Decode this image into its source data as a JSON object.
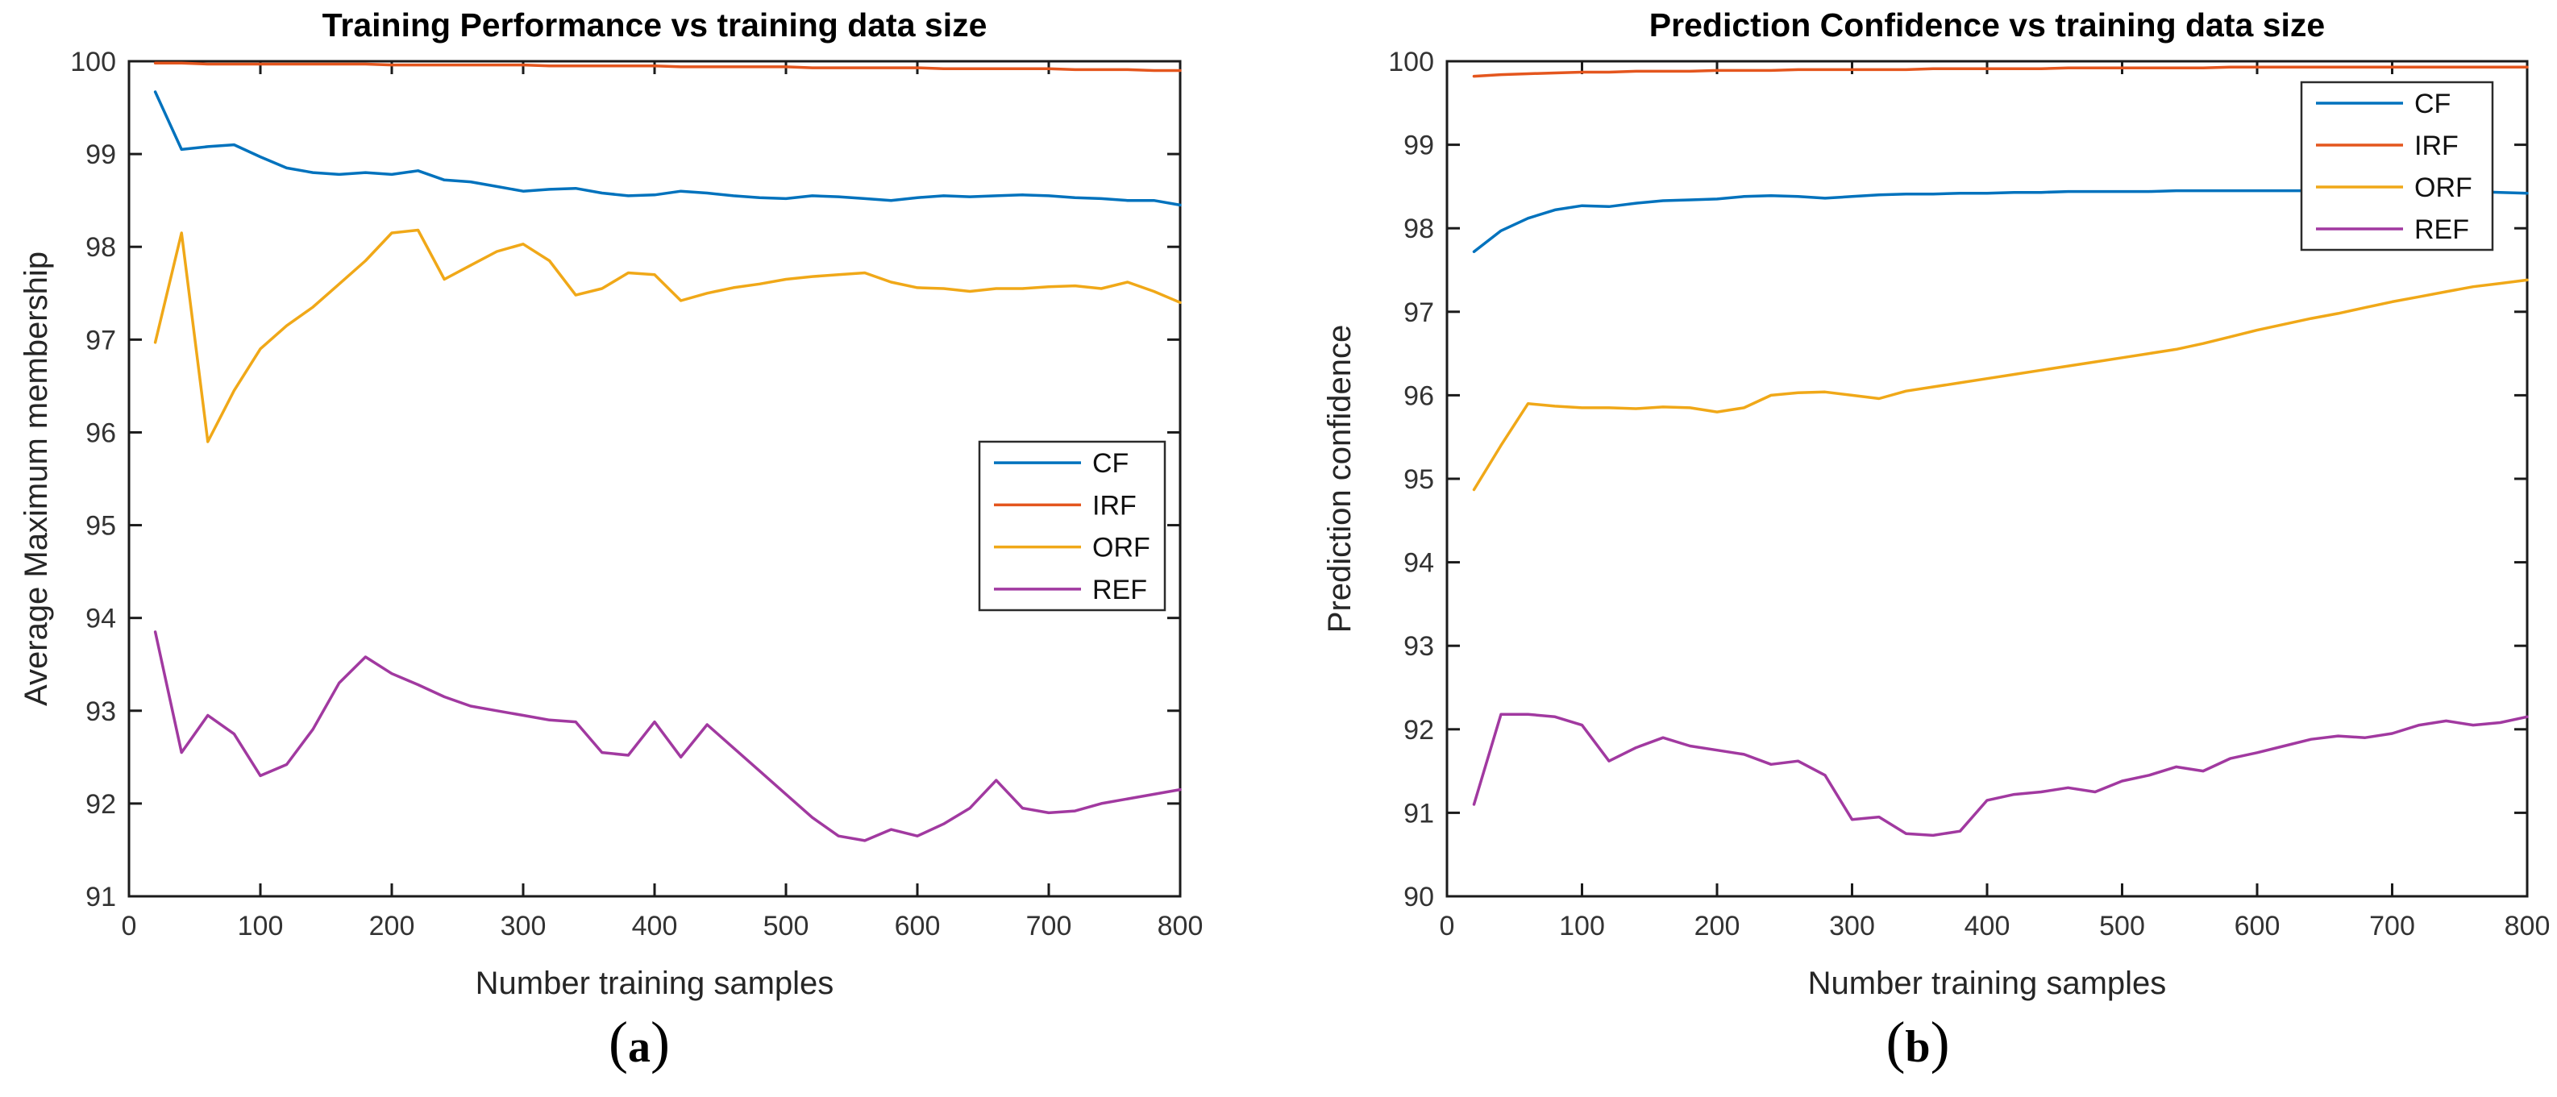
{
  "chart_data": [
    {
      "type": "line",
      "panel": "a",
      "title": "Training Performance vs training data size",
      "xlabel": "Number training samples",
      "ylabel": "Average Maximum membership",
      "caption": {
        "open": "(",
        "letter": "a",
        "close": ")"
      },
      "xlim": [
        0,
        800
      ],
      "ylim": [
        91,
        100
      ],
      "x_ticks": [
        0,
        100,
        200,
        300,
        400,
        500,
        600,
        700,
        800
      ],
      "y_ticks": [
        91,
        92,
        93,
        94,
        95,
        96,
        97,
        98,
        99,
        100
      ],
      "grid": false,
      "legend_position": "middle-right",
      "x": [
        20,
        40,
        60,
        80,
        100,
        120,
        140,
        160,
        180,
        200,
        220,
        240,
        260,
        280,
        300,
        320,
        340,
        360,
        380,
        400,
        420,
        440,
        460,
        480,
        500,
        520,
        540,
        560,
        580,
        600,
        620,
        640,
        660,
        680,
        700,
        720,
        740,
        760,
        780,
        800
      ],
      "series": [
        {
          "name": "CF",
          "color": "#0072BD",
          "values": [
            99.67,
            99.05,
            99.08,
            99.1,
            98.97,
            98.85,
            98.8,
            98.78,
            98.8,
            98.78,
            98.82,
            98.72,
            98.7,
            98.65,
            98.6,
            98.62,
            98.63,
            98.58,
            98.55,
            98.56,
            98.6,
            98.58,
            98.55,
            98.53,
            98.52,
            98.55,
            98.54,
            98.52,
            98.5,
            98.53,
            98.55,
            98.54,
            98.55,
            98.56,
            98.55,
            98.53,
            98.52,
            98.5,
            98.5,
            98.45
          ]
        },
        {
          "name": "IRF",
          "color": "#E4561E",
          "values": [
            99.98,
            99.98,
            99.97,
            99.97,
            99.97,
            99.97,
            99.97,
            99.97,
            99.97,
            99.96,
            99.96,
            99.96,
            99.96,
            99.96,
            99.96,
            99.95,
            99.95,
            99.95,
            99.95,
            99.95,
            99.94,
            99.94,
            99.94,
            99.94,
            99.94,
            99.93,
            99.93,
            99.93,
            99.93,
            99.93,
            99.92,
            99.92,
            99.92,
            99.92,
            99.92,
            99.91,
            99.91,
            99.91,
            99.9,
            99.9
          ]
        },
        {
          "name": "ORF",
          "color": "#F0A818",
          "values": [
            96.97,
            98.15,
            95.9,
            96.45,
            96.9,
            97.15,
            97.35,
            97.6,
            97.85,
            98.15,
            98.18,
            97.65,
            97.8,
            97.95,
            98.03,
            97.85,
            97.48,
            97.55,
            97.72,
            97.7,
            97.42,
            97.5,
            97.56,
            97.6,
            97.65,
            97.68,
            97.7,
            97.72,
            97.62,
            97.56,
            97.55,
            97.52,
            97.55,
            97.55,
            97.57,
            97.58,
            97.55,
            97.62,
            97.52,
            97.4
          ]
        },
        {
          "name": "REF",
          "color": "#A139A0",
          "values": [
            93.85,
            92.55,
            92.95,
            92.75,
            92.3,
            92.42,
            92.8,
            93.3,
            93.58,
            93.4,
            93.28,
            93.15,
            93.05,
            93.0,
            92.95,
            92.9,
            92.88,
            92.55,
            92.52,
            92.88,
            92.5,
            92.85,
            92.6,
            92.35,
            92.1,
            91.85,
            91.65,
            91.6,
            91.72,
            91.65,
            91.78,
            91.95,
            92.25,
            91.95,
            91.9,
            91.92,
            92.0,
            92.05,
            92.1,
            92.15
          ]
        }
      ]
    },
    {
      "type": "line",
      "panel": "b",
      "title": "Prediction Confidence vs training data size",
      "xlabel": "Number training samples",
      "ylabel": "Prediction confidence",
      "caption": {
        "open": "(",
        "letter": "b",
        "close": ")"
      },
      "xlim": [
        0,
        800
      ],
      "ylim": [
        90,
        100
      ],
      "x_ticks": [
        0,
        100,
        200,
        300,
        400,
        500,
        600,
        700,
        800
      ],
      "y_ticks": [
        90,
        91,
        92,
        93,
        94,
        95,
        96,
        97,
        98,
        99,
        100
      ],
      "grid": false,
      "legend_position": "top-right",
      "x": [
        20,
        40,
        60,
        80,
        100,
        120,
        140,
        160,
        180,
        200,
        220,
        240,
        260,
        280,
        300,
        320,
        340,
        360,
        380,
        400,
        420,
        440,
        460,
        480,
        500,
        520,
        540,
        560,
        580,
        600,
        620,
        640,
        660,
        680,
        700,
        720,
        740,
        760,
        780,
        800
      ],
      "series": [
        {
          "name": "CF",
          "color": "#0072BD",
          "values": [
            97.72,
            97.97,
            98.12,
            98.22,
            98.27,
            98.26,
            98.3,
            98.33,
            98.34,
            98.35,
            98.38,
            98.39,
            98.38,
            98.36,
            98.38,
            98.4,
            98.41,
            98.41,
            98.42,
            98.42,
            98.43,
            98.43,
            98.44,
            98.44,
            98.44,
            98.44,
            98.45,
            98.45,
            98.45,
            98.45,
            98.45,
            98.45,
            98.45,
            98.44,
            98.44,
            98.44,
            98.44,
            98.44,
            98.43,
            98.42
          ]
        },
        {
          "name": "IRF",
          "color": "#E4561E",
          "values": [
            99.82,
            99.84,
            99.85,
            99.86,
            99.87,
            99.87,
            99.88,
            99.88,
            99.88,
            99.89,
            99.89,
            99.89,
            99.9,
            99.9,
            99.9,
            99.9,
            99.9,
            99.91,
            99.91,
            99.91,
            99.91,
            99.91,
            99.92,
            99.92,
            99.92,
            99.92,
            99.92,
            99.92,
            99.93,
            99.93,
            99.93,
            99.93,
            99.93,
            99.93,
            99.93,
            99.93,
            99.93,
            99.93,
            99.93,
            99.93
          ]
        },
        {
          "name": "ORF",
          "color": "#F0A818",
          "values": [
            94.87,
            95.4,
            95.9,
            95.87,
            95.85,
            95.85,
            95.84,
            95.86,
            95.85,
            95.8,
            95.85,
            96.0,
            96.03,
            96.04,
            96.0,
            95.96,
            96.05,
            96.1,
            96.15,
            96.2,
            96.25,
            96.3,
            96.35,
            96.4,
            96.45,
            96.5,
            96.55,
            96.62,
            96.7,
            96.78,
            96.85,
            96.92,
            96.98,
            97.05,
            97.12,
            97.18,
            97.24,
            97.3,
            97.34,
            97.38
          ]
        },
        {
          "name": "REF",
          "color": "#A139A0",
          "values": [
            91.1,
            92.18,
            92.18,
            92.15,
            92.05,
            91.62,
            91.78,
            91.9,
            91.8,
            91.75,
            91.7,
            91.58,
            91.62,
            91.45,
            90.92,
            90.95,
            90.75,
            90.73,
            90.78,
            91.15,
            91.22,
            91.25,
            91.3,
            91.25,
            91.38,
            91.45,
            91.55,
            91.5,
            91.65,
            91.72,
            91.8,
            91.88,
            91.92,
            91.9,
            91.95,
            92.05,
            92.1,
            92.05,
            92.08,
            92.15
          ]
        }
      ]
    }
  ]
}
